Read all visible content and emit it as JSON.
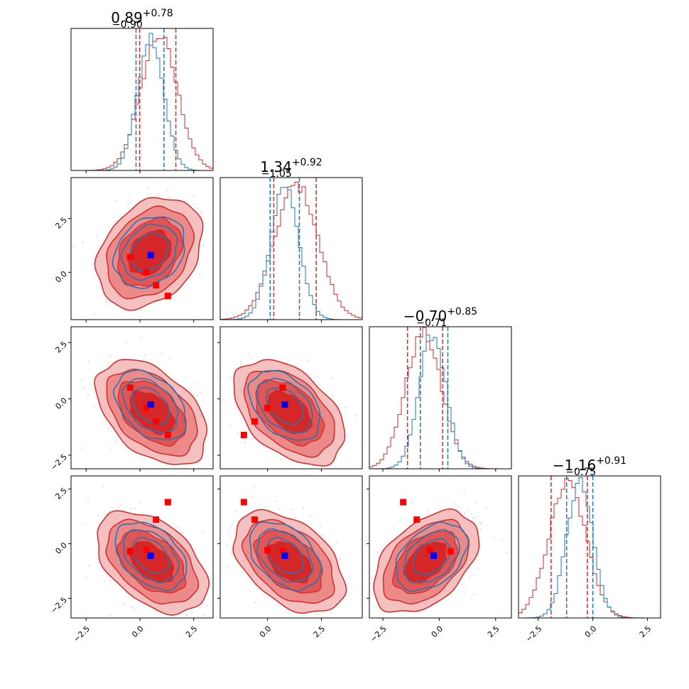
{
  "chart_data": {
    "type": "corner",
    "colors": {
      "primary": "#d62728",
      "secondary": "#1f77b4",
      "marker_primary": "#ff0000",
      "marker_secondary": "#0000ff"
    },
    "grid": false,
    "parameters": [
      {
        "index": 0,
        "title": {
          "value": "0.89",
          "upper": "+0.78",
          "lower": "−0.90"
        },
        "range": [
          -3.2,
          3.4
        ],
        "ticks": [
          -2.5,
          0.0,
          2.5
        ],
        "tick_labels": [
          "−2.5",
          "0.0",
          "2.5"
        ],
        "quantiles_red": [
          -0.01,
          1.67
        ],
        "quantiles_blue": [
          -0.18,
          1.12
        ],
        "hist_red": {
          "mean": 0.89,
          "sd": 0.85
        },
        "hist_blue": {
          "mean": 0.5,
          "sd": 0.6
        }
      },
      {
        "index": 1,
        "title": {
          "value": "1.34",
          "upper": "+0.92",
          "lower": "−1.05"
        },
        "range": [
          -2.2,
          4.4
        ],
        "ticks": [
          0.0,
          2.5
        ],
        "tick_labels": [
          "0.0",
          "2.5"
        ],
        "quantiles_red": [
          0.29,
          2.26
        ],
        "quantiles_blue": [
          0.12,
          1.48
        ],
        "hist_red": {
          "mean": 1.34,
          "sd": 1.0
        },
        "hist_blue": {
          "mean": 0.8,
          "sd": 0.65
        }
      },
      {
        "index": 2,
        "title": {
          "value": "−0.70",
          "upper": "+0.85",
          "lower": "−0.71"
        },
        "range": [
          -3.1,
          3.2
        ],
        "ticks": [
          -2.5,
          0.0,
          2.5
        ],
        "tick_labels": [
          "−2.5",
          "0.0",
          "2.5"
        ],
        "quantiles_red": [
          -1.41,
          0.15
        ],
        "quantiles_blue": [
          -0.84,
          0.38
        ],
        "hist_red": {
          "mean": -0.7,
          "sd": 0.8
        },
        "hist_blue": {
          "mean": -0.3,
          "sd": 0.6
        }
      },
      {
        "index": 3,
        "title": {
          "value": "−1.16",
          "upper": "+0.91",
          "lower": "−0.75"
        },
        "range": [
          -3.4,
          3.1
        ],
        "ticks": [
          -2.5,
          0.0,
          2.5
        ],
        "tick_labels": [
          "−2.5",
          "0.0",
          "2.5"
        ],
        "quantiles_red": [
          -1.91,
          -0.25
        ],
        "quantiles_blue": [
          -1.2,
          0.0
        ],
        "hist_red": {
          "mean": -1.16,
          "sd": 0.85
        },
        "hist_blue": {
          "mean": -0.6,
          "sd": 0.6
        }
      }
    ],
    "red_markers": [
      [
        -0.45,
        0.7,
        0.5,
        -0.35
      ],
      [
        0.3,
        0.0,
        -0.4,
        -0.3
      ],
      [
        0.75,
        -0.6,
        -1.0,
        1.1
      ],
      [
        1.3,
        -1.1,
        -1.6,
        1.9
      ]
    ],
    "blue_marker": [
      0.5,
      0.8,
      -0.25,
      -0.55
    ],
    "pair_params": [
      {
        "i": 1,
        "j": 0,
        "red": {
          "mx": 0.45,
          "my": 0.9,
          "sx": 1.0,
          "sy": 1.05,
          "rho": 0.3
        },
        "blue": {
          "mx": 0.45,
          "my": 0.95,
          "sx": 0.75,
          "sy": 0.75,
          "rho": 0.25
        }
      },
      {
        "i": 2,
        "j": 0,
        "red": {
          "mx": 0.55,
          "my": -0.6,
          "sx": 1.05,
          "sy": 0.95,
          "rho": -0.45
        },
        "blue": {
          "mx": 0.5,
          "my": -0.3,
          "sx": 0.75,
          "sy": 0.7,
          "rho": -0.4
        }
      },
      {
        "i": 2,
        "j": 1,
        "red": {
          "mx": 1.0,
          "my": -0.6,
          "sx": 1.05,
          "sy": 0.95,
          "rho": -0.45
        },
        "blue": {
          "mx": 0.8,
          "my": -0.3,
          "sx": 0.75,
          "sy": 0.7,
          "rho": -0.4
        }
      },
      {
        "i": 3,
        "j": 0,
        "red": {
          "mx": 0.55,
          "my": -0.85,
          "sx": 1.05,
          "sy": 0.95,
          "rho": -0.45
        },
        "blue": {
          "mx": 0.5,
          "my": -0.55,
          "sx": 0.75,
          "sy": 0.7,
          "rho": -0.4
        }
      },
      {
        "i": 3,
        "j": 1,
        "red": {
          "mx": 1.0,
          "my": -0.85,
          "sx": 1.05,
          "sy": 0.95,
          "rho": -0.45
        },
        "blue": {
          "mx": 0.8,
          "my": -0.55,
          "sx": 0.75,
          "sy": 0.7,
          "rho": -0.4
        }
      },
      {
        "i": 3,
        "j": 2,
        "red": {
          "mx": -0.6,
          "my": -0.85,
          "sx": 0.95,
          "sy": 0.95,
          "rho": 0.45
        },
        "blue": {
          "mx": -0.35,
          "my": -0.6,
          "sx": 0.72,
          "sy": 0.7,
          "rho": 0.4
        }
      }
    ]
  }
}
